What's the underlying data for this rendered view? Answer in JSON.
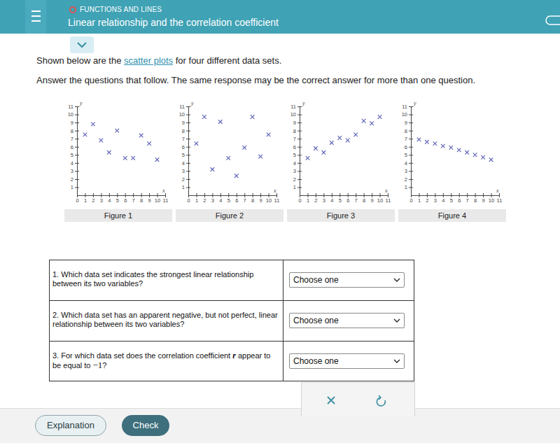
{
  "header": {
    "category": "FUNCTIONS AND LINES",
    "title": "Linear relationship and the correlation coefficient"
  },
  "intro": {
    "before_link": "Shown below are the ",
    "link": "scatter plots",
    "after_link": " for four different data sets.",
    "instruction": "Answer the questions that follow. The same response may be the correct answer for more than one question."
  },
  "chart_data": [
    {
      "type": "scatter",
      "title": "Figure 1",
      "x_label": "x",
      "y_label": "y",
      "marker": "x",
      "color": "#5a5fb5",
      "x": [
        1,
        2,
        3,
        4,
        5,
        6,
        7,
        8,
        9,
        10
      ],
      "values": [
        7.5,
        8.8,
        6.8,
        5.3,
        8,
        4.6,
        4.6,
        7.4,
        6.4,
        4.4
      ],
      "xlim": [
        0,
        11
      ],
      "ylim": [
        0,
        11
      ],
      "xticks": [
        0,
        1,
        2,
        3,
        4,
        5,
        6,
        7,
        8,
        9,
        10,
        11
      ],
      "yticks": [
        1,
        2,
        3,
        4,
        5,
        6,
        7,
        8,
        9,
        10,
        11
      ]
    },
    {
      "type": "scatter",
      "title": "Figure 2",
      "x_label": "x",
      "y_label": "y",
      "marker": "x",
      "color": "#5a5fb5",
      "x": [
        1,
        2,
        3,
        4,
        5,
        6,
        7,
        8,
        9,
        10
      ],
      "values": [
        6.4,
        9.7,
        3.2,
        9.1,
        4.6,
        2.4,
        5.9,
        9.7,
        4.8,
        7.5
      ],
      "xlim": [
        0,
        11
      ],
      "ylim": [
        0,
        11
      ],
      "xticks": [
        0,
        1,
        2,
        3,
        4,
        5,
        6,
        7,
        8,
        9,
        10,
        11
      ],
      "yticks": [
        1,
        2,
        3,
        4,
        5,
        6,
        7,
        8,
        9,
        10,
        11
      ]
    },
    {
      "type": "scatter",
      "title": "Figure 3",
      "x_label": "x",
      "y_label": "y",
      "marker": "x",
      "color": "#5a5fb5",
      "x": [
        1,
        2,
        3,
        4,
        5,
        6,
        7,
        8,
        9,
        10
      ],
      "values": [
        4.6,
        5.8,
        5.3,
        6.5,
        7.1,
        6.8,
        7.5,
        9.2,
        8.9,
        9.7
      ],
      "xlim": [
        0,
        11
      ],
      "ylim": [
        0,
        11
      ],
      "xticks": [
        0,
        1,
        2,
        3,
        4,
        5,
        6,
        7,
        8,
        9,
        10,
        11
      ],
      "yticks": [
        1,
        2,
        3,
        4,
        5,
        6,
        7,
        8,
        9,
        10,
        11
      ]
    },
    {
      "type": "scatter",
      "title": "Figure 4",
      "x_label": "x",
      "y_label": "y",
      "marker": "x",
      "color": "#5a5fb5",
      "x": [
        1,
        2,
        3,
        4,
        5,
        6,
        7,
        8,
        9,
        10
      ],
      "values": [
        6.9,
        6.6,
        6.4,
        6.1,
        5.9,
        5.6,
        5.3,
        5.0,
        4.7,
        4.4
      ],
      "xlim": [
        0,
        11
      ],
      "ylim": [
        0,
        11
      ],
      "xticks": [
        0,
        1,
        2,
        3,
        4,
        5,
        6,
        7,
        8,
        9,
        10,
        11
      ],
      "yticks": [
        1,
        2,
        3,
        4,
        5,
        6,
        7,
        8,
        9,
        10,
        11
      ]
    }
  ],
  "questions": [
    {
      "number": "1.",
      "text": "Which data set indicates the strongest linear relationship between its two variables?",
      "placeholder": "Choose one"
    },
    {
      "number": "2.",
      "text": "Which data set has an apparent negative, but not perfect, linear relationship between its two variables?",
      "placeholder": "Choose one"
    },
    {
      "number": "3.",
      "text": "For which data set does the correlation coefficient ",
      "variable": "r",
      "text_after": " appear to be equal to ",
      "value": "−1",
      "end": "?",
      "placeholder": "Choose one"
    }
  ],
  "buttons": {
    "explanation": "Explanation",
    "check": "Check"
  }
}
